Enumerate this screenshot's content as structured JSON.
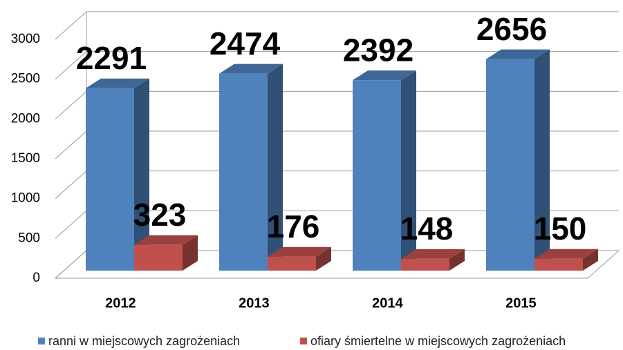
{
  "chart_data": {
    "type": "bar3d",
    "categories": [
      "2012",
      "2013",
      "2014",
      "2015"
    ],
    "series": [
      {
        "name": "ranni w miejscowych zagrożeniach",
        "color": "#4f81bd",
        "values": [
          2291,
          2474,
          2392,
          2656
        ]
      },
      {
        "name": "ofiary śmiertelne w miejscowych zagrożeniach",
        "color": "#c0504d",
        "values": [
          323,
          176,
          148,
          150
        ]
      }
    ],
    "ylim": [
      0,
      3000
    ],
    "yticks": [
      0,
      500,
      1000,
      1500,
      2000,
      2500,
      3000
    ],
    "grid": true,
    "legend": "bottom"
  }
}
